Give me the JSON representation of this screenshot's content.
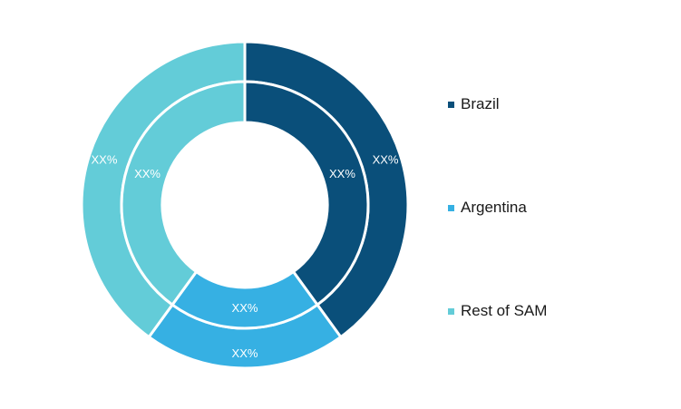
{
  "chart_data": {
    "type": "pie",
    "variant": "double-donut",
    "categories": [
      "Brazil",
      "Argentina",
      "Rest of SAM"
    ],
    "colors": [
      "#0a4f7a",
      "#36b0e3",
      "#63ccd8"
    ],
    "series": [
      {
        "ring": "outer",
        "values": [
          40,
          20,
          40
        ],
        "labels": [
          "XX%",
          "XX%",
          "XX%"
        ]
      },
      {
        "ring": "inner",
        "values": [
          40,
          20,
          40
        ],
        "labels": [
          "XX%",
          "XX%",
          "XX%"
        ]
      }
    ],
    "legend_position": "right"
  },
  "legend": {
    "items": [
      {
        "label": "Brazil",
        "color": "#0a4f7a"
      },
      {
        "label": "Argentina",
        "color": "#36b0e3"
      },
      {
        "label": "Rest of SAM",
        "color": "#63ccd8"
      }
    ]
  }
}
